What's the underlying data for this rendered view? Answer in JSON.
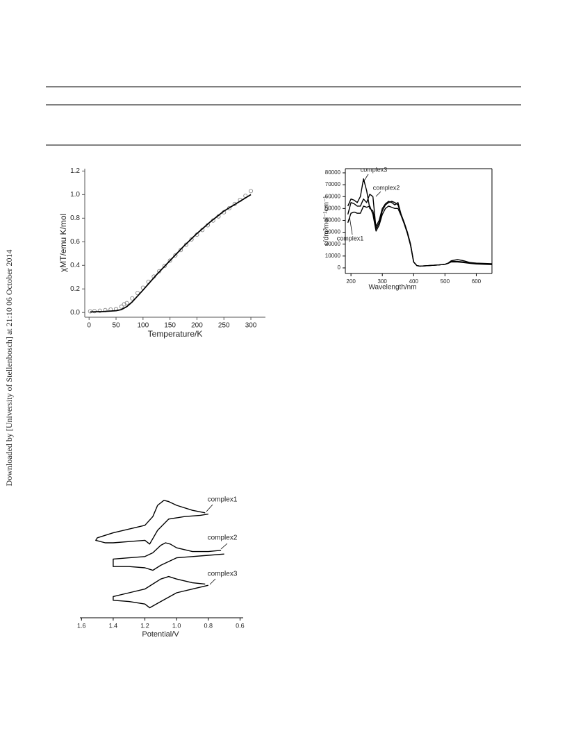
{
  "side_note": "Downloaded by [University of Stellenbosch] at 21:10 06 October 2014",
  "chart_data": [
    {
      "type": "line",
      "frame": "left-bottom",
      "xlabel": "Temperature/K",
      "ylabel": "χMT/emu K/mol",
      "xlim": [
        -8,
        327
      ],
      "ylim": [
        -0.04,
        1.22
      ],
      "xticks": [
        0,
        50,
        100,
        150,
        200,
        250,
        300
      ],
      "yticks": [
        {
          "value": 0,
          "label": "0.0"
        },
        0.2,
        0.4,
        0.6,
        0.8,
        {
          "value": 1,
          "label": "1.0"
        },
        1.2
      ],
      "series": [
        {
          "style": "markers",
          "color": "#888888",
          "x": [
            2,
            10,
            20,
            30,
            40,
            50,
            60,
            65,
            70,
            80,
            90,
            100,
            110,
            120,
            130,
            140,
            150,
            160,
            170,
            180,
            190,
            200,
            210,
            220,
            230,
            240,
            250,
            260,
            270,
            280,
            290,
            300
          ],
          "values": [
            0.01,
            0.012,
            0.015,
            0.02,
            0.025,
            0.03,
            0.05,
            0.07,
            0.08,
            0.12,
            0.165,
            0.21,
            0.26,
            0.305,
            0.35,
            0.395,
            0.44,
            0.485,
            0.53,
            0.575,
            0.62,
            0.66,
            0.7,
            0.74,
            0.78,
            0.815,
            0.85,
            0.885,
            0.92,
            0.955,
            0.99,
            1.03
          ]
        },
        {
          "style": "line",
          "color": "#000000",
          "x": [
            2,
            25,
            50,
            60,
            70,
            80,
            100,
            125,
            150,
            175,
            200,
            225,
            250,
            275,
            300
          ],
          "values": [
            0.005,
            0.008,
            0.015,
            0.025,
            0.05,
            0.09,
            0.19,
            0.32,
            0.44,
            0.56,
            0.67,
            0.77,
            0.86,
            0.93,
            1.0
          ]
        }
      ]
    },
    {
      "type": "line",
      "frame": "box",
      "xlabel": "Wavelength/nm",
      "ylabel": "ε/dm³mol⁻¹cm⁻¹",
      "xlim": [
        182,
        650
      ],
      "ylim": [
        -4700,
        83500
      ],
      "xticks": [
        200,
        300,
        400,
        500,
        600
      ],
      "yticks": [
        0,
        10000,
        20000,
        30000,
        40000,
        50000,
        60000,
        70000,
        80000
      ],
      "x": [
        190,
        200,
        210,
        220,
        230,
        240,
        250,
        260,
        270,
        280,
        290,
        300,
        310,
        320,
        330,
        340,
        350,
        360,
        370,
        380,
        390,
        400,
        410,
        420,
        450,
        480,
        500,
        510,
        520,
        540,
        560,
        580,
        600,
        650
      ],
      "series": [
        {
          "name": "complex1",
          "style": "line",
          "color": "#000000",
          "values": [
            38000,
            46000,
            47000,
            46000,
            46000,
            52000,
            51000,
            52000,
            45000,
            31000,
            36000,
            45000,
            50000,
            52000,
            51000,
            50000,
            50000,
            44000,
            37000,
            29000,
            19000,
            5000,
            2000,
            1500,
            2000,
            2500,
            3000,
            3800,
            5000,
            5000,
            4500,
            3800,
            3300,
            2800
          ]
        },
        {
          "name": "complex2",
          "style": "line",
          "color": "#000000",
          "values": [
            45000,
            55000,
            54000,
            52000,
            52000,
            58000,
            55000,
            62000,
            60000,
            33000,
            38000,
            48000,
            53000,
            55000,
            56000,
            55000,
            53000,
            45000,
            38000,
            30000,
            20000,
            5000,
            2000,
            1500,
            2000,
            2500,
            3000,
            4000,
            5500,
            5500,
            5000,
            4000,
            3500,
            3000
          ]
        },
        {
          "name": "complex3",
          "style": "line",
          "color": "#000000",
          "values": [
            52000,
            58000,
            57000,
            55000,
            60000,
            75000,
            65000,
            50000,
            48000,
            35000,
            40000,
            50000,
            54000,
            56000,
            55000,
            53000,
            55000,
            45000,
            38000,
            30000,
            20000,
            5000,
            2000,
            1500,
            2000,
            2500,
            3000,
            4000,
            6000,
            7000,
            6000,
            4500,
            4000,
            3500
          ]
        }
      ]
    },
    {
      "type": "line",
      "frame": "bottom",
      "xlabel": "Potential/V",
      "xlim": [
        1.61,
        0.58
      ],
      "ylim": [
        0,
        100
      ],
      "xticks": [
        1.6,
        1.4,
        1.2,
        {
          "value": 1,
          "label": "1.0"
        },
        0.8,
        0.6
      ],
      "series": [
        {
          "name": "complex1",
          "style": "line",
          "color": "#000000",
          "x": [
            0.82,
            0.9,
            1.0,
            1.05,
            1.08,
            1.12,
            1.15,
            1.2,
            1.3,
            1.4,
            1.5,
            1.51,
            1.45,
            1.4,
            1.3,
            1.2,
            1.17,
            1.12,
            1.05,
            0.95,
            0.85,
            0.8
          ],
          "values": [
            84,
            86,
            90,
            93,
            94,
            90,
            81,
            74,
            71,
            68,
            64,
            62,
            60,
            60,
            61,
            62,
            59,
            70,
            79,
            81,
            82,
            83
          ]
        },
        {
          "name": "complex2",
          "style": "line",
          "color": "#000000",
          "x": [
            0.72,
            0.8,
            0.9,
            1.0,
            1.04,
            1.07,
            1.1,
            1.15,
            1.2,
            1.3,
            1.4,
            1.4,
            1.3,
            1.2,
            1.15,
            1.1,
            1.0,
            0.9,
            0.8,
            0.7
          ],
          "values": [
            54,
            53,
            53,
            56,
            59,
            60,
            58,
            52,
            49,
            48,
            47,
            41,
            41,
            40,
            38,
            42,
            48,
            49,
            50,
            51
          ]
        },
        {
          "name": "complex3",
          "style": "line",
          "color": "#000000",
          "x": [
            0.82,
            0.9,
            1.0,
            1.05,
            1.1,
            1.15,
            1.2,
            1.3,
            1.4,
            1.4,
            1.3,
            1.2,
            1.17,
            1.1,
            1.0,
            0.9,
            0.8
          ],
          "values": [
            27,
            28,
            31,
            33,
            31,
            27,
            23,
            20,
            17,
            14,
            13,
            11,
            8,
            13,
            20,
            23,
            26
          ]
        }
      ]
    }
  ]
}
